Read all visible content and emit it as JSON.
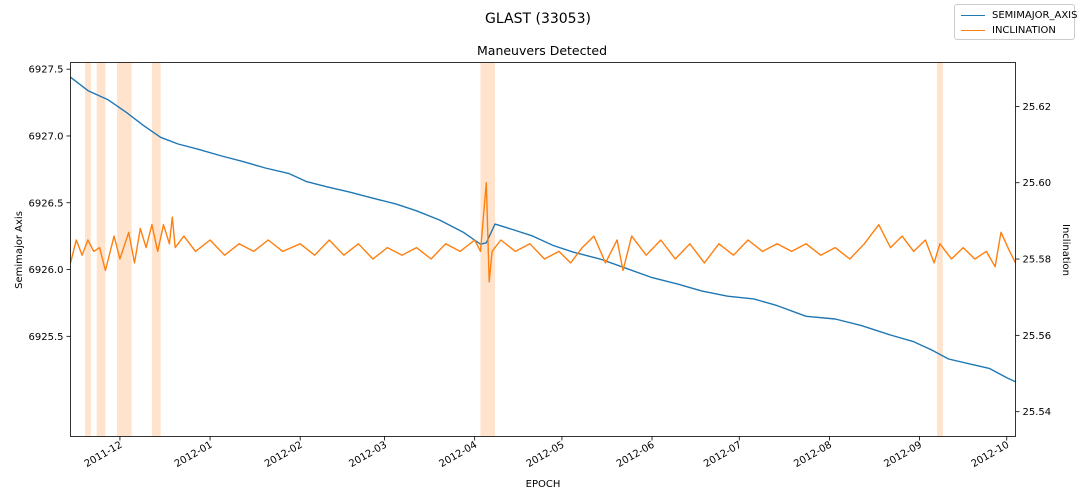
{
  "figure": {
    "suptitle": "GLAST (33053)"
  },
  "chart_data": {
    "type": "line",
    "title": "Maneuvers Detected",
    "xlabel": "EPOCH",
    "ylabel_left": "Semimajor Axis",
    "ylabel_right": "Inclination",
    "xlim": [
      "2011-11-14",
      "2012-10-04"
    ],
    "ylim_left": [
      6924.75,
      6927.55
    ],
    "ylim_right": [
      25.5335,
      25.6315
    ],
    "x_ticks": [
      {
        "date": "2011-12-01",
        "label": "2011-12"
      },
      {
        "date": "2012-01-01",
        "label": "2012-01"
      },
      {
        "date": "2012-02-01",
        "label": "2012-02"
      },
      {
        "date": "2012-03-01",
        "label": "2012-03"
      },
      {
        "date": "2012-04-01",
        "label": "2012-04"
      },
      {
        "date": "2012-05-01",
        "label": "2012-05"
      },
      {
        "date": "2012-06-01",
        "label": "2012-06"
      },
      {
        "date": "2012-07-01",
        "label": "2012-07"
      },
      {
        "date": "2012-08-01",
        "label": "2012-08"
      },
      {
        "date": "2012-09-01",
        "label": "2012-09"
      },
      {
        "date": "2012-10-01",
        "label": "2012-10"
      }
    ],
    "y_ticks_left": [
      {
        "value": 6925.5,
        "label": "6925.5"
      },
      {
        "value": 6926.0,
        "label": "6926.0"
      },
      {
        "value": 6926.5,
        "label": "6926.5"
      },
      {
        "value": 6927.0,
        "label": "6927.0"
      },
      {
        "value": 6927.5,
        "label": "6927.5"
      }
    ],
    "y_ticks_right": [
      {
        "value": 25.54,
        "label": "25.54"
      },
      {
        "value": 25.56,
        "label": "25.56"
      },
      {
        "value": 25.58,
        "label": "25.58"
      },
      {
        "value": 25.6,
        "label": "25.60"
      },
      {
        "value": 25.62,
        "label": "25.62"
      }
    ],
    "maneuver_windows": [
      [
        "2011-11-19",
        "2011-11-21"
      ],
      [
        "2011-11-23",
        "2011-11-26"
      ],
      [
        "2011-11-30",
        "2011-12-05"
      ],
      [
        "2011-12-12",
        "2011-12-15"
      ],
      [
        "2012-04-03",
        "2012-04-08"
      ],
      [
        "2012-09-07",
        "2012-09-09"
      ]
    ],
    "legend": {
      "placement": "upper right (figure)"
    },
    "series": [
      {
        "name": "SEMIMAJOR_AXIS",
        "axis": "left",
        "color": "#1f77b4",
        "points": [
          [
            "2011-11-14",
            6927.44
          ],
          [
            "2011-11-20",
            6927.34
          ],
          [
            "2011-11-27",
            6927.27
          ],
          [
            "2011-12-03",
            6927.18
          ],
          [
            "2011-12-09",
            6927.08
          ],
          [
            "2011-12-15",
            6926.99
          ],
          [
            "2011-12-21",
            6926.94
          ],
          [
            "2011-12-28",
            6926.9
          ],
          [
            "2012-01-05",
            6926.85
          ],
          [
            "2012-01-12",
            6926.81
          ],
          [
            "2012-01-20",
            6926.76
          ],
          [
            "2012-01-28",
            6926.72
          ],
          [
            "2012-02-03",
            6926.66
          ],
          [
            "2012-02-10",
            6926.62
          ],
          [
            "2012-02-18",
            6926.58
          ],
          [
            "2012-02-25",
            6926.54
          ],
          [
            "2012-03-05",
            6926.49
          ],
          [
            "2012-03-12",
            6926.44
          ],
          [
            "2012-03-20",
            6926.37
          ],
          [
            "2012-03-28",
            6926.28
          ],
          [
            "2012-04-03",
            6926.19
          ],
          [
            "2012-04-05",
            6926.2
          ],
          [
            "2012-04-08",
            6926.34
          ],
          [
            "2012-04-14",
            6926.3
          ],
          [
            "2012-04-21",
            6926.25
          ],
          [
            "2012-04-28",
            6926.18
          ],
          [
            "2012-05-05",
            6926.13
          ],
          [
            "2012-05-14",
            6926.08
          ],
          [
            "2012-05-23",
            6926.01
          ],
          [
            "2012-06-01",
            6925.94
          ],
          [
            "2012-06-10",
            6925.89
          ],
          [
            "2012-06-18",
            6925.84
          ],
          [
            "2012-06-27",
            6925.8
          ],
          [
            "2012-07-06",
            6925.78
          ],
          [
            "2012-07-14",
            6925.73
          ],
          [
            "2012-07-24",
            6925.65
          ],
          [
            "2012-08-03",
            6925.63
          ],
          [
            "2012-08-12",
            6925.58
          ],
          [
            "2012-08-22",
            6925.51
          ],
          [
            "2012-08-30",
            6925.46
          ],
          [
            "2012-09-05",
            6925.4
          ],
          [
            "2012-09-11",
            6925.33
          ],
          [
            "2012-09-19",
            6925.29
          ],
          [
            "2012-09-25",
            6925.26
          ],
          [
            "2012-10-01",
            6925.19
          ],
          [
            "2012-10-04",
            6925.16
          ]
        ]
      },
      {
        "name": "INCLINATION",
        "axis": "right",
        "color": "#ff7f0e",
        "points": [
          [
            "2011-11-14",
            25.579
          ],
          [
            "2011-11-16",
            25.585
          ],
          [
            "2011-11-18",
            25.581
          ],
          [
            "2011-11-20",
            25.585
          ],
          [
            "2011-11-22",
            25.582
          ],
          [
            "2011-11-24",
            25.583
          ],
          [
            "2011-11-26",
            25.577
          ],
          [
            "2011-11-29",
            25.586
          ],
          [
            "2011-12-01",
            25.58
          ],
          [
            "2011-12-04",
            25.587
          ],
          [
            "2011-12-06",
            25.579
          ],
          [
            "2011-12-08",
            25.588
          ],
          [
            "2011-12-10",
            25.583
          ],
          [
            "2011-12-12",
            25.589
          ],
          [
            "2011-12-14",
            25.582
          ],
          [
            "2011-12-16",
            25.589
          ],
          [
            "2011-12-18",
            25.584
          ],
          [
            "2011-12-19",
            25.591
          ],
          [
            "2011-12-20",
            25.583
          ],
          [
            "2011-12-23",
            25.586
          ],
          [
            "2011-12-27",
            25.582
          ],
          [
            "2012-01-01",
            25.585
          ],
          [
            "2012-01-06",
            25.581
          ],
          [
            "2012-01-11",
            25.584
          ],
          [
            "2012-01-16",
            25.582
          ],
          [
            "2012-01-21",
            25.585
          ],
          [
            "2012-01-26",
            25.582
          ],
          [
            "2012-02-01",
            25.584
          ],
          [
            "2012-02-06",
            25.581
          ],
          [
            "2012-02-11",
            25.585
          ],
          [
            "2012-02-16",
            25.581
          ],
          [
            "2012-02-21",
            25.584
          ],
          [
            "2012-02-26",
            25.58
          ],
          [
            "2012-03-02",
            25.583
          ],
          [
            "2012-03-07",
            25.581
          ],
          [
            "2012-03-12",
            25.583
          ],
          [
            "2012-03-17",
            25.58
          ],
          [
            "2012-03-22",
            25.584
          ],
          [
            "2012-03-27",
            25.582
          ],
          [
            "2012-04-01",
            25.585
          ],
          [
            "2012-04-03",
            25.582
          ],
          [
            "2012-04-05",
            25.6
          ],
          [
            "2012-04-06",
            25.574
          ],
          [
            "2012-04-07",
            25.582
          ],
          [
            "2012-04-10",
            25.585
          ],
          [
            "2012-04-15",
            25.582
          ],
          [
            "2012-04-20",
            25.584
          ],
          [
            "2012-04-25",
            25.58
          ],
          [
            "2012-04-30",
            25.582
          ],
          [
            "2012-05-04",
            25.579
          ],
          [
            "2012-05-08",
            25.583
          ],
          [
            "2012-05-12",
            25.586
          ],
          [
            "2012-05-16",
            25.579
          ],
          [
            "2012-05-20",
            25.585
          ],
          [
            "2012-05-22",
            25.577
          ],
          [
            "2012-05-25",
            25.586
          ],
          [
            "2012-05-30",
            25.581
          ],
          [
            "2012-06-04",
            25.585
          ],
          [
            "2012-06-09",
            25.58
          ],
          [
            "2012-06-14",
            25.584
          ],
          [
            "2012-06-19",
            25.579
          ],
          [
            "2012-06-24",
            25.584
          ],
          [
            "2012-06-29",
            25.581
          ],
          [
            "2012-07-04",
            25.585
          ],
          [
            "2012-07-09",
            25.582
          ],
          [
            "2012-07-14",
            25.584
          ],
          [
            "2012-07-19",
            25.582
          ],
          [
            "2012-07-24",
            25.584
          ],
          [
            "2012-07-29",
            25.581
          ],
          [
            "2012-08-03",
            25.583
          ],
          [
            "2012-08-08",
            25.58
          ],
          [
            "2012-08-13",
            25.584
          ],
          [
            "2012-08-18",
            25.589
          ],
          [
            "2012-08-22",
            25.583
          ],
          [
            "2012-08-26",
            25.586
          ],
          [
            "2012-08-30",
            25.582
          ],
          [
            "2012-09-03",
            25.585
          ],
          [
            "2012-09-06",
            25.579
          ],
          [
            "2012-09-08",
            25.584
          ],
          [
            "2012-09-12",
            25.58
          ],
          [
            "2012-09-16",
            25.583
          ],
          [
            "2012-09-20",
            25.58
          ],
          [
            "2012-09-24",
            25.582
          ],
          [
            "2012-09-27",
            25.578
          ],
          [
            "2012-09-29",
            25.587
          ],
          [
            "2012-10-02",
            25.582
          ],
          [
            "2012-10-04",
            25.579
          ]
        ]
      }
    ]
  }
}
